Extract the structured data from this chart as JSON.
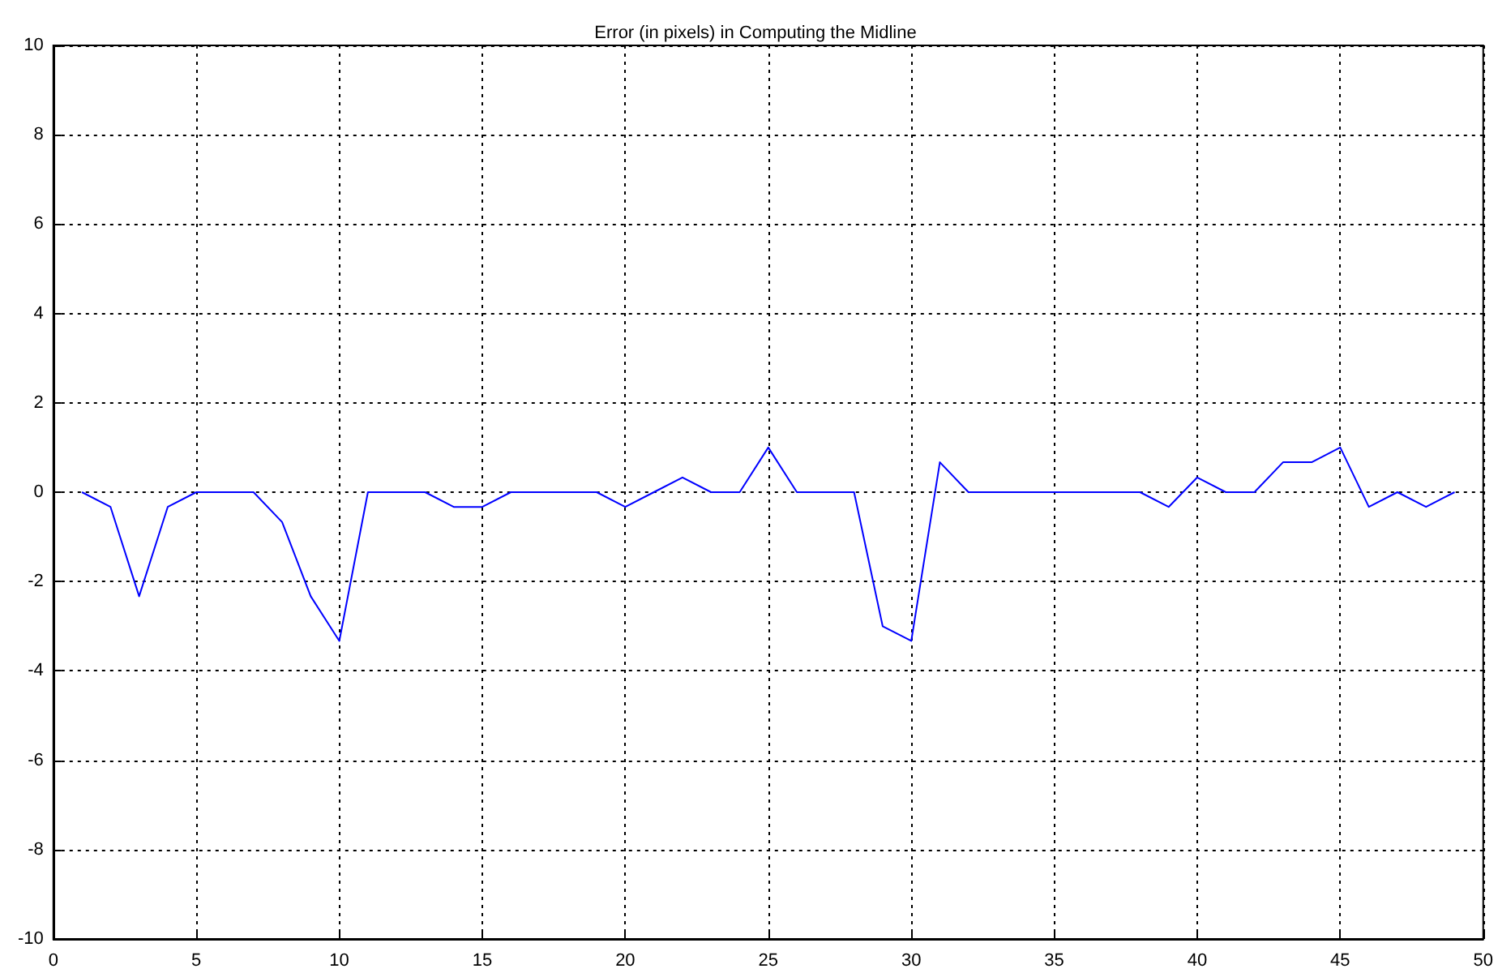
{
  "chart_data": {
    "type": "line",
    "title": "Error (in pixels) in Computing the Midline",
    "x": [
      1,
      2,
      3,
      4,
      5,
      6,
      7,
      8,
      9,
      10,
      11,
      12,
      13,
      14,
      15,
      16,
      17,
      18,
      19,
      20,
      21,
      22,
      23,
      24,
      25,
      26,
      27,
      28,
      29,
      30,
      31,
      32,
      33,
      34,
      35,
      36,
      37,
      38,
      39,
      40,
      41,
      42,
      43,
      44,
      45,
      46,
      47,
      48,
      49
    ],
    "series": [
      {
        "color": "#0000ff",
        "values": [
          0,
          -0.33,
          -2.33,
          -0.33,
          0,
          0,
          0,
          -0.67,
          -2.33,
          -3.33,
          0,
          0,
          0,
          -0.33,
          -0.33,
          0,
          0,
          0,
          0,
          -0.33,
          0,
          0.33,
          0,
          0,
          1,
          0,
          0,
          0,
          -3,
          -3.33,
          0.67,
          0,
          0,
          0,
          0,
          0,
          0,
          0,
          -0.33,
          0.33,
          0,
          0,
          0.67,
          0.67,
          1,
          -0.33,
          0,
          -0.33,
          0
        ]
      }
    ],
    "xlim": [
      0,
      50
    ],
    "xticks": [
      0,
      5,
      10,
      15,
      20,
      25,
      30,
      35,
      40,
      45,
      50
    ],
    "ylim": [
      -10,
      10
    ],
    "yticks": [
      -10,
      -8,
      -6,
      -4,
      -2,
      0,
      2,
      4,
      6,
      8,
      10
    ],
    "grid": true,
    "marker": "none",
    "line_style": "solid"
  }
}
